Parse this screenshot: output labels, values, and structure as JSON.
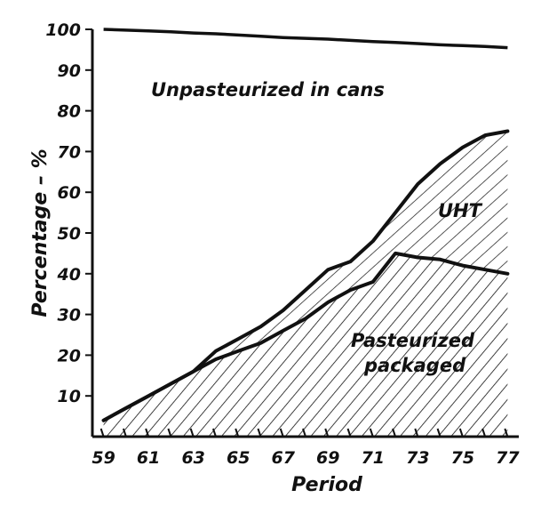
{
  "chart_data": {
    "type": "area",
    "title": "",
    "xlabel": "Period",
    "ylabel": "Percentage – %",
    "xlim": [
      58.5,
      77.5
    ],
    "ylim": [
      0,
      100
    ],
    "x_ticks": [
      59,
      61,
      63,
      65,
      67,
      69,
      71,
      73,
      75,
      77
    ],
    "y_ticks": [
      10,
      20,
      30,
      40,
      50,
      60,
      70,
      80,
      90,
      100
    ],
    "x": [
      59,
      60,
      61,
      62,
      63,
      64,
      65,
      66,
      67,
      68,
      69,
      70,
      71,
      72,
      73,
      74,
      75,
      76,
      77
    ],
    "series": [
      {
        "name": "Pasteurized packaged",
        "values": [
          4,
          7,
          10,
          13,
          16,
          19,
          21,
          23,
          26,
          29,
          33,
          36,
          38,
          45,
          44,
          43.5,
          42,
          41,
          40
        ]
      },
      {
        "name": "UHT",
        "values": [
          4,
          7,
          10,
          13,
          16,
          21,
          24,
          27,
          31,
          36,
          41,
          43,
          48,
          55,
          62,
          67,
          71,
          74,
          75
        ]
      },
      {
        "name": "Unpasteurized in cans",
        "values": [
          100,
          99.8,
          99.6,
          99.4,
          99.1,
          98.9,
          98.6,
          98.3,
          98,
          97.8,
          97.6,
          97.3,
          97,
          96.8,
          96.5,
          96.2,
          96,
          95.8,
          95.5
        ]
      }
    ],
    "annotations": {
      "unpasteurized": "Unpasteurized in cans",
      "uht": "UHT",
      "pasteurized_1": "Pasteurized",
      "pasteurized_2": "packaged"
    },
    "grid": false,
    "legend": "none"
  }
}
